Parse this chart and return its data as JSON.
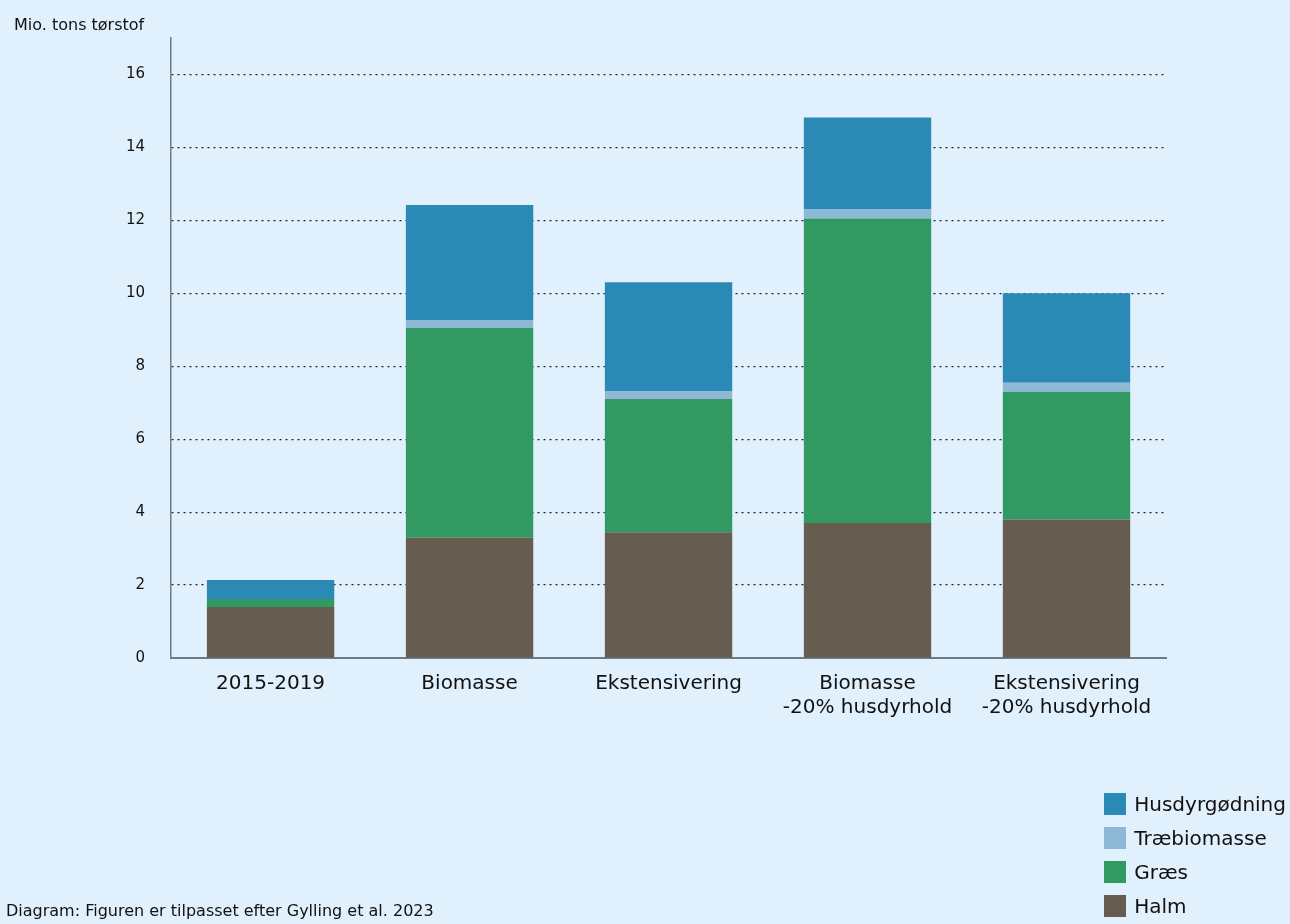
{
  "chart_data": {
    "type": "bar",
    "stacked": true,
    "ylabel": "Mio. tons tørstof",
    "categories": [
      "2015-2019",
      "Biomasse",
      "Ekstensivering",
      "Biomasse\n-20% husdyrhold",
      "Ekstensivering\n-20% husdyrhold"
    ],
    "series": [
      {
        "name": "Halm",
        "color": "#665c50",
        "values": [
          1.4,
          3.3,
          3.45,
          3.7,
          3.8
        ]
      },
      {
        "name": "Græs",
        "color": "#339963",
        "values": [
          0.22,
          5.75,
          3.65,
          8.35,
          3.5
        ]
      },
      {
        "name": "Træbiomasse",
        "color": "#8fb8d6",
        "values": [
          0,
          0.22,
          0.22,
          0.25,
          0.25
        ]
      },
      {
        "name": "Husdyrgødning",
        "color": "#2b8ab5",
        "values": [
          0.52,
          3.15,
          2.98,
          2.52,
          2.45
        ]
      }
    ],
    "ylim": [
      0,
      17
    ],
    "yticks": [
      0,
      2,
      4,
      6,
      8,
      10,
      12,
      14,
      16
    ],
    "grid": "y",
    "legend": "bottom right",
    "annotations": [
      "Diagram: Figuren er tilpasset efter Gylling et al. 2023"
    ]
  }
}
